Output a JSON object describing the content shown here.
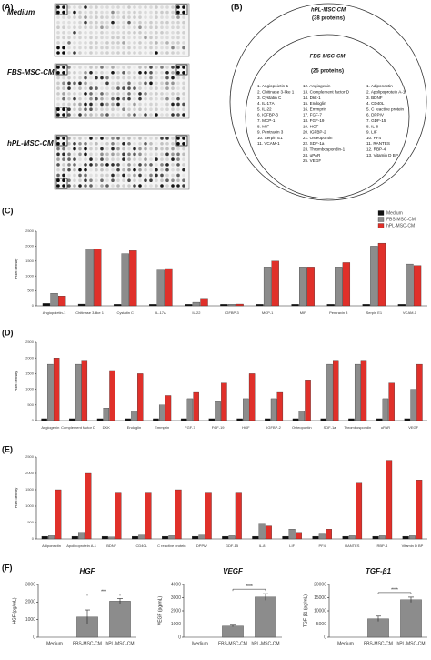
{
  "panel_a": {
    "label": "(A)",
    "blots": [
      "Medium",
      "FBS-MSC-CM",
      "hPL-MSC-CM"
    ]
  },
  "panel_b": {
    "label": "(B)",
    "outer_title": "hPL-MSC-CM",
    "outer_count": "(38 proteins)",
    "inner_title": "FBS-MSC-CM",
    "inner_count": "(25 proteins)",
    "inner_list": [
      "1. Angiopoietin-1",
      "2. Chitinase 3-like 1",
      "3. Cystatin C",
      "4. IL-17A",
      "5. IL-22",
      "6. IGFBP-3",
      "7. MCP-1",
      "8. MIF",
      "9. Pentraxin 3",
      "10. Serpin E1",
      "11. VCAM-1",
      "12. Angiogenin",
      "13. Complement factor D",
      "14. Dkk-1",
      "15. Endoglin",
      "16. Emmprin",
      "17. FGF-7",
      "18. FGF-19",
      "19. HGF",
      "20. IGFBP-2",
      "21. Osteopontin",
      "22. SDF-1a",
      "23. Thrombospondin-1",
      "24. uPAR",
      "25. VEGF"
    ],
    "outer_list": [
      "1. Adiponectin",
      "2. Apolipoprotein A-1",
      "3. BDNF",
      "4. CD40L",
      "5. C reactive protein",
      "6. DPPIV",
      "7. GDF-15",
      "8. IL-8",
      "9. LIF",
      "10. PF4",
      "11. RANTES",
      "12. RBP-4",
      "13. Vitamin D BP"
    ]
  },
  "chart_data": [
    {
      "type": "bar",
      "panel": "(C)",
      "ylabel": "Pixel density",
      "legend": "top-right",
      "categories": [
        "Angiopoietin-1",
        "Chitinase 3-like 1",
        "Cystatin C",
        "IL-17A",
        "IL-22",
        "IGFBP-3",
        "MCP-1",
        "MIF",
        "Pentraxin 3",
        "Serpin E1",
        "VCAM-1"
      ],
      "series": [
        {
          "name": "Medium",
          "color": "#111111",
          "values": [
            80,
            60,
            50,
            50,
            50,
            50,
            50,
            50,
            50,
            50,
            50
          ]
        },
        {
          "name": "FBS-MSC-CM",
          "color": "#8c8c8c",
          "values": [
            420,
            1900,
            1750,
            1200,
            120,
            50,
            1300,
            1300,
            1300,
            2000,
            1400
          ]
        },
        {
          "name": "hPL-MSC-CM",
          "color": "#e0302a",
          "values": [
            330,
            1900,
            1850,
            1250,
            250,
            60,
            1500,
            1300,
            1450,
            2100,
            1350
          ]
        }
      ],
      "ylim": [
        0,
        2500
      ],
      "yticks": [
        0,
        500,
        1000,
        1500,
        2000,
        2500
      ]
    },
    {
      "type": "bar",
      "panel": "(D)",
      "ylabel": "Pixel density",
      "categories": [
        "Angiogenin",
        "Complement factor D",
        "DKK",
        "Endoglin",
        "Emmprin",
        "FGF-7",
        "FGF-19",
        "HGF",
        "IGFBP-2",
        "Osteopontin",
        "SDF-1a",
        "Thrombospondin",
        "uPAR",
        "VEGF"
      ],
      "series": [
        {
          "color": "#111111",
          "values": [
            60,
            60,
            60,
            60,
            60,
            60,
            60,
            60,
            60,
            60,
            60,
            60,
            60,
            60
          ]
        },
        {
          "color": "#8c8c8c",
          "values": [
            1800,
            1800,
            400,
            300,
            500,
            700,
            600,
            700,
            700,
            300,
            1800,
            1800,
            700,
            1000
          ]
        },
        {
          "color": "#e0302a",
          "values": [
            2000,
            1900,
            1600,
            1500,
            800,
            900,
            1200,
            1500,
            900,
            1300,
            1900,
            1900,
            1200,
            1800
          ]
        }
      ],
      "ylim": [
        0,
        2500
      ],
      "yticks": [
        0,
        500,
        1000,
        1500,
        2000,
        2500
      ]
    },
    {
      "type": "bar",
      "panel": "(E)",
      "ylabel": "Pixel density",
      "categories": [
        "Adiponectin",
        "Apolipoprotein A-1",
        "BDNF",
        "CD40L",
        "C reactive protein",
        "DPPIV",
        "GDF-15",
        "IL-8",
        "LIF",
        "PF4",
        "RANTES",
        "RBP-4",
        "Vitamin D BP"
      ],
      "series": [
        {
          "color": "#111111",
          "values": [
            80,
            80,
            80,
            80,
            80,
            80,
            80,
            80,
            80,
            80,
            80,
            80,
            80
          ]
        },
        {
          "color": "#8c8c8c",
          "values": [
            100,
            200,
            60,
            120,
            100,
            120,
            100,
            450,
            300,
            150,
            100,
            100,
            100
          ]
        },
        {
          "color": "#e0302a",
          "values": [
            1500,
            2000,
            1400,
            1400,
            1500,
            1400,
            1400,
            400,
            200,
            300,
            1700,
            2400,
            1800
          ]
        }
      ],
      "ylim": [
        0,
        2500
      ],
      "yticks": [
        0,
        500,
        1000,
        1500,
        2000,
        2500
      ]
    },
    {
      "type": "bar",
      "panel": "(F)",
      "title": "HGF",
      "ylabel": "HGF (pg/mL)",
      "categories": [
        "Medium",
        "FBS-MSC-CM",
        "hPL-MSC-CM"
      ],
      "values": [
        0,
        1150,
        2050
      ],
      "errors": [
        0,
        400,
        150
      ],
      "color": "#8c8c8c",
      "significance": "***",
      "ylim": [
        0,
        3000
      ],
      "yticks": [
        0,
        1000,
        2000,
        3000
      ]
    },
    {
      "type": "bar",
      "title": "VEGF",
      "ylabel": "VEGF (pg/mL)",
      "categories": [
        "Medium",
        "FBS-MSC-CM",
        "hPL-MSC-CM"
      ],
      "values": [
        0,
        850,
        3050
      ],
      "errors": [
        0,
        60,
        250
      ],
      "color": "#8c8c8c",
      "significance": "****",
      "ylim": [
        0,
        4000
      ],
      "yticks": [
        0,
        1000,
        2000,
        3000,
        4000
      ]
    },
    {
      "type": "bar",
      "title": "TGF-β1",
      "ylabel": "TGF-β1 (pg/mL)",
      "categories": [
        "Medium",
        "FBS-MSC-CM",
        "hPL-MSC-CM"
      ],
      "values": [
        0,
        7000,
        14200
      ],
      "errors": [
        0,
        1000,
        1000
      ],
      "color": "#8c8c8c",
      "significance": "****",
      "ylim": [
        0,
        20000
      ],
      "yticks": [
        0,
        5000,
        10000,
        15000,
        20000
      ]
    }
  ]
}
